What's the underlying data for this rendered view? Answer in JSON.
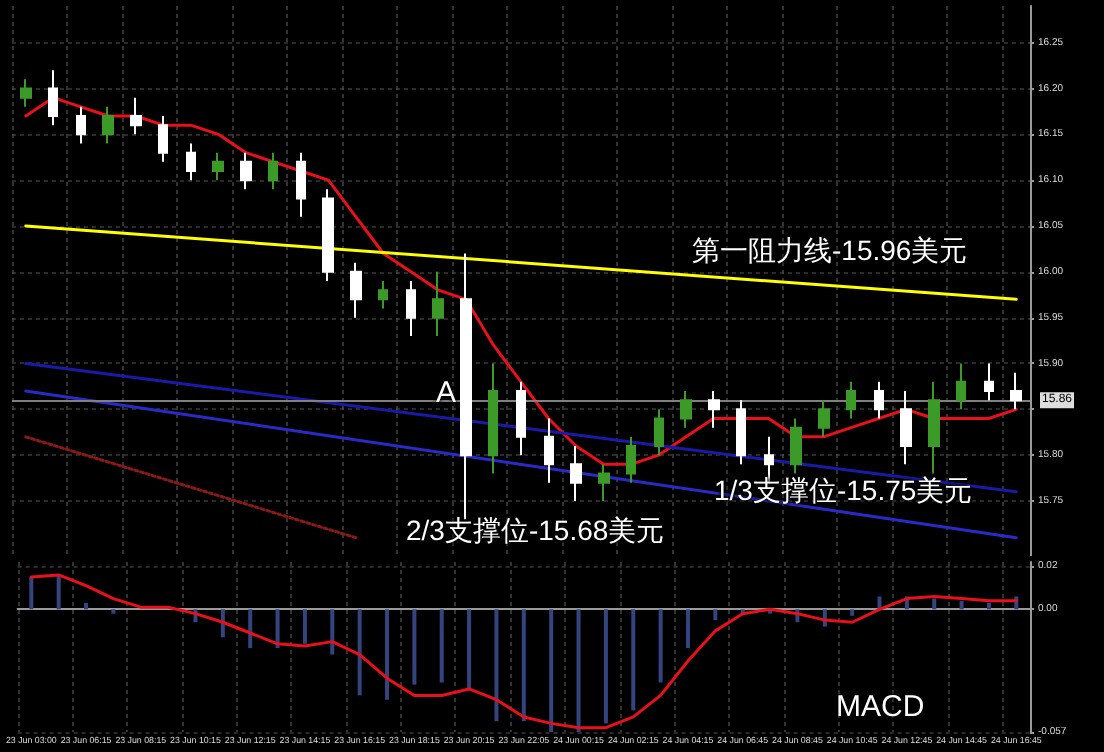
{
  "chart_data": [
    {
      "type": "candlestick",
      "categories": [
        "23 Jun 03:00",
        null,
        "23 Jun 06:15",
        null,
        "23 Jun 08:15",
        null,
        "23 Jun 10:15",
        null,
        "23 Jun 12:15",
        null,
        "23 Jun 14:15",
        null,
        "23 Jun 16:15",
        null,
        "23 Jun 18:15",
        null,
        "23 Jun 20:15",
        null,
        "23 Jun 22:05",
        null,
        "24 Jun 00:15",
        null,
        "24 Jun 02:15",
        null,
        "24 Jun 04:15",
        null,
        "24 Jun 06:45",
        null,
        "24 Jun 08:45",
        null,
        "24 Jun 10:45",
        null,
        "24 Jun 12:45",
        null,
        "24 Jun 14:45",
        null,
        "24 Jun 16:45"
      ],
      "ohlc": [
        [
          16.19,
          16.21,
          16.18,
          16.2
        ],
        [
          16.2,
          16.22,
          16.16,
          16.17
        ],
        [
          16.17,
          16.18,
          16.14,
          16.15
        ],
        [
          16.15,
          16.18,
          16.14,
          16.17
        ],
        [
          16.17,
          16.19,
          16.15,
          16.16
        ],
        [
          16.16,
          16.17,
          16.12,
          16.13
        ],
        [
          16.13,
          16.14,
          16.1,
          16.11
        ],
        [
          16.11,
          16.13,
          16.1,
          16.12
        ],
        [
          16.12,
          16.13,
          16.09,
          16.1
        ],
        [
          16.1,
          16.13,
          16.09,
          16.12
        ],
        [
          16.12,
          16.13,
          16.06,
          16.08
        ],
        [
          16.08,
          16.09,
          15.99,
          16.0
        ],
        [
          16.0,
          16.01,
          15.95,
          15.97
        ],
        [
          15.97,
          15.99,
          15.96,
          15.98
        ],
        [
          15.98,
          15.99,
          15.93,
          15.95
        ],
        [
          15.95,
          16.0,
          15.93,
          15.97
        ],
        [
          15.97,
          16.02,
          15.73,
          15.8
        ],
        [
          15.8,
          15.9,
          15.78,
          15.87
        ],
        [
          15.87,
          15.88,
          15.8,
          15.82
        ],
        [
          15.82,
          15.84,
          15.77,
          15.79
        ],
        [
          15.79,
          15.81,
          15.75,
          15.77
        ],
        [
          15.77,
          15.79,
          15.75,
          15.78
        ],
        [
          15.78,
          15.82,
          15.77,
          15.81
        ],
        [
          15.81,
          15.85,
          15.8,
          15.84
        ],
        [
          15.84,
          15.87,
          15.83,
          15.86
        ],
        [
          15.86,
          15.87,
          15.83,
          15.85
        ],
        [
          15.85,
          15.86,
          15.79,
          15.8
        ],
        [
          15.8,
          15.82,
          15.77,
          15.79
        ],
        [
          15.79,
          15.84,
          15.78,
          15.83
        ],
        [
          15.83,
          15.86,
          15.82,
          15.85
        ],
        [
          15.85,
          15.88,
          15.84,
          15.87
        ],
        [
          15.87,
          15.88,
          15.84,
          15.85
        ],
        [
          15.85,
          15.87,
          15.79,
          15.81
        ],
        [
          15.81,
          15.88,
          15.78,
          15.86
        ],
        [
          15.86,
          15.9,
          15.85,
          15.88
        ],
        [
          15.88,
          15.9,
          15.86,
          15.87
        ],
        [
          15.87,
          15.89,
          15.85,
          15.86
        ]
      ],
      "colors": [
        "#3c9a28",
        "#ffffff",
        "#ffffff",
        "#3c9a28",
        "#ffffff",
        "#ffffff",
        "#ffffff",
        "#3c9a28",
        "#ffffff",
        "#3c9a28",
        "#ffffff",
        "#ffffff",
        "#ffffff",
        "#3c9a28",
        "#ffffff",
        "#3c9a28",
        "#ffffff",
        "#3c9a28",
        "#ffffff",
        "#ffffff",
        "#ffffff",
        "#3c9a28",
        "#3c9a28",
        "#3c9a28",
        "#3c9a28",
        "#ffffff",
        "#ffffff",
        "#ffffff",
        "#3c9a28",
        "#3c9a28",
        "#3c9a28",
        "#ffffff",
        "#ffffff",
        "#3c9a28",
        "#3c9a28",
        "#ffffff",
        "#ffffff"
      ],
      "series": [
        {
          "type": "line",
          "color": "#e8101a",
          "values": [
            16.17,
            16.19,
            16.18,
            16.17,
            16.17,
            16.16,
            16.16,
            16.15,
            16.13,
            16.12,
            16.11,
            16.1,
            16.06,
            16.02,
            16.0,
            15.98,
            15.97,
            15.92,
            15.88,
            15.84,
            15.81,
            15.79,
            15.79,
            15.8,
            15.82,
            15.84,
            15.84,
            15.84,
            15.82,
            15.82,
            15.83,
            15.84,
            15.85,
            15.84,
            15.84,
            15.84,
            15.85
          ]
        },
        {
          "type": "line",
          "color": "#ffff00",
          "x": [
            "23 Jun 03:00",
            "24 Jun 16:45"
          ],
          "values": [
            16.05,
            15.97
          ]
        },
        {
          "type": "line",
          "color": "#1a1aa8",
          "x": [
            "23 Jun 03:00",
            "24 Jun 16:45"
          ],
          "values": [
            15.9,
            15.76
          ]
        },
        {
          "type": "line",
          "color": "#2a2ac8",
          "x": [
            "23 Jun 03:00",
            "24 Jun 16:45"
          ],
          "values": [
            15.87,
            15.71
          ]
        },
        {
          "type": "line",
          "color": "#8a1a1a",
          "line_style": "dotted",
          "x": [
            "23 Jun 03:00",
            "23 Jun 16:15"
          ],
          "values": [
            15.82,
            15.71
          ]
        }
      ],
      "ref_lines": [
        {
          "axis": "y",
          "value": 15.86,
          "label": "15.86",
          "color": "#808080"
        }
      ],
      "annotations": [
        "A",
        "第一阻力线-15.96美元",
        "1/3支撑位-15.75美元",
        "2/3支撑位-15.68美元"
      ],
      "ylim": [
        15.69,
        16.29
      ],
      "yticks": [
        {
          "value": 15.8,
          "label": "15.80"
        },
        15.75,
        {
          "value": 15.85,
          "label": null
        },
        {
          "value": 15.9,
          "label": "15.90"
        },
        15.95,
        {
          "value": 16,
          "label": "16.00"
        },
        16.05,
        {
          "value": 16.1,
          "label": "16.10"
        },
        16.15,
        {
          "value": 16.2,
          "label": "16.20"
        },
        16.25
      ],
      "grid": true,
      "tick_labels": "y"
    },
    {
      "type": "bar",
      "categories": [
        "23 Jun 03:00",
        null,
        "23 Jun 06:15",
        null,
        "23 Jun 08:15",
        null,
        "23 Jun 10:15",
        null,
        "23 Jun 12:15",
        null,
        "23 Jun 14:15",
        null,
        "23 Jun 16:15",
        null,
        "23 Jun 18:15",
        null,
        "23 Jun 20:15",
        null,
        "23 Jun 22:05",
        null,
        "24 Jun 00:15",
        null,
        "24 Jun 02:15",
        null,
        "24 Jun 04:15",
        null,
        "24 Jun 06:45",
        null,
        "24 Jun 08:45",
        null,
        "24 Jun 10:45",
        null,
        "24 Jun 12:45",
        null,
        "24 Jun 14:45",
        null,
        "24 Jun 16:45"
      ],
      "series": [
        {
          "type": "bar",
          "color": "#34447f",
          "values": [
            0.015,
            0.016,
            0.003,
            -0.002,
            null,
            0,
            -0.006,
            -0.013,
            -0.018,
            -0.018,
            -0.016,
            -0.021,
            -0.04,
            -0.042,
            -0.035,
            -0.034,
            -0.037,
            -0.052,
            -0.052,
            -0.057,
            -0.057,
            -0.053,
            -0.047,
            -0.034,
            -0.018,
            -0.005,
            -0.002,
            -0.002,
            -0.006,
            -0.008,
            -0.003,
            0.006,
            0.006,
            0.005,
            0.004,
            0.003,
            0.006
          ]
        },
        {
          "type": "line",
          "color": "#e8101a",
          "values": [
            0.015,
            0.016,
            0.011,
            0.005,
            0.001,
            0.001,
            -0.002,
            -0.006,
            -0.011,
            -0.016,
            -0.017,
            -0.015,
            -0.021,
            -0.032,
            -0.04,
            -0.04,
            -0.037,
            -0.042,
            -0.05,
            -0.053,
            -0.055,
            -0.055,
            -0.05,
            -0.04,
            -0.024,
            -0.01,
            -0.002,
            0,
            -0.002,
            -0.005,
            -0.006,
            0,
            0.005,
            0.006,
            0.005,
            0.004,
            0.004
          ]
        }
      ],
      "annotations": [
        "MACD"
      ],
      "ylim": [
        -0.057,
        0.022
      ],
      "yticks": [
        -0.057,
        {
          "value": 0,
          "label": "0.00"
        },
        0.02
      ],
      "grid": true
    }
  ]
}
